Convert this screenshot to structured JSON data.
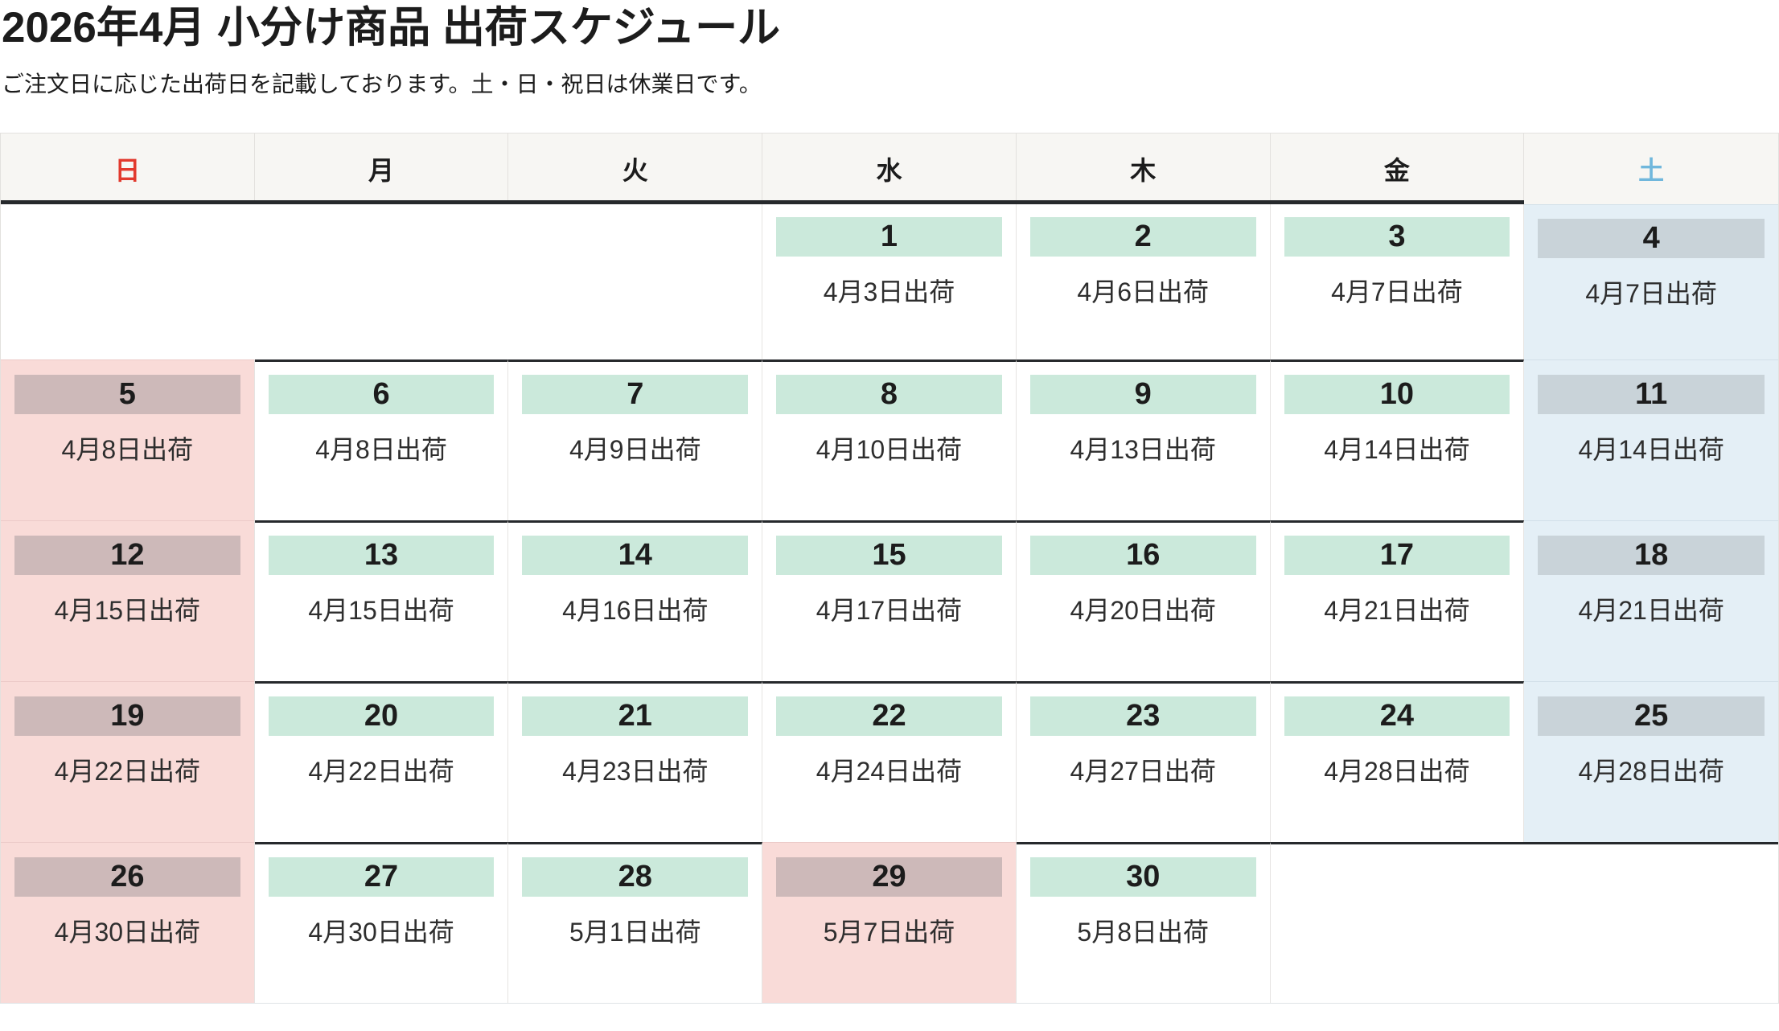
{
  "title": "2026年4月 小分け商品 出荷スケジュール",
  "subtitle": "ご注文日に応じた出荷日を記載しております。土・日・祝日は休業日です。",
  "weekday_header": [
    {
      "label": "日",
      "type": "sunday"
    },
    {
      "label": "月",
      "type": "weekday"
    },
    {
      "label": "火",
      "type": "weekday"
    },
    {
      "label": "水",
      "type": "weekday"
    },
    {
      "label": "木",
      "type": "weekday"
    },
    {
      "label": "金",
      "type": "weekday"
    },
    {
      "label": "土",
      "type": "saturday"
    }
  ],
  "calendar": {
    "rows": [
      {
        "cells": [
          {
            "type": "blank",
            "span": 3
          },
          {
            "type": "weekday",
            "day": "1",
            "ship": "4月3日出荷"
          },
          {
            "type": "weekday",
            "day": "2",
            "ship": "4月6日出荷"
          },
          {
            "type": "weekday",
            "day": "3",
            "ship": "4月7日出荷"
          },
          {
            "type": "saturday",
            "day": "4",
            "ship": "4月7日出荷"
          }
        ]
      },
      {
        "cells": [
          {
            "type": "sunday",
            "day": "5",
            "ship": "4月8日出荷"
          },
          {
            "type": "weekday",
            "day": "6",
            "ship": "4月8日出荷"
          },
          {
            "type": "weekday",
            "day": "7",
            "ship": "4月9日出荷"
          },
          {
            "type": "weekday",
            "day": "8",
            "ship": "4月10日出荷"
          },
          {
            "type": "weekday",
            "day": "9",
            "ship": "4月13日出荷"
          },
          {
            "type": "weekday",
            "day": "10",
            "ship": "4月14日出荷"
          },
          {
            "type": "saturday",
            "day": "11",
            "ship": "4月14日出荷"
          }
        ]
      },
      {
        "cells": [
          {
            "type": "sunday",
            "day": "12",
            "ship": "4月15日出荷"
          },
          {
            "type": "weekday",
            "day": "13",
            "ship": "4月15日出荷"
          },
          {
            "type": "weekday",
            "day": "14",
            "ship": "4月16日出荷"
          },
          {
            "type": "weekday",
            "day": "15",
            "ship": "4月17日出荷"
          },
          {
            "type": "weekday",
            "day": "16",
            "ship": "4月20日出荷"
          },
          {
            "type": "weekday",
            "day": "17",
            "ship": "4月21日出荷"
          },
          {
            "type": "saturday",
            "day": "18",
            "ship": "4月21日出荷"
          }
        ]
      },
      {
        "cells": [
          {
            "type": "sunday",
            "day": "19",
            "ship": "4月22日出荷"
          },
          {
            "type": "weekday",
            "day": "20",
            "ship": "4月22日出荷"
          },
          {
            "type": "weekday",
            "day": "21",
            "ship": "4月23日出荷"
          },
          {
            "type": "weekday",
            "day": "22",
            "ship": "4月24日出荷"
          },
          {
            "type": "weekday",
            "day": "23",
            "ship": "4月27日出荷"
          },
          {
            "type": "weekday",
            "day": "24",
            "ship": "4月28日出荷"
          },
          {
            "type": "saturday",
            "day": "25",
            "ship": "4月28日出荷"
          }
        ]
      },
      {
        "cells": [
          {
            "type": "sunday",
            "day": "26",
            "ship": "4月30日出荷"
          },
          {
            "type": "weekday",
            "day": "27",
            "ship": "4月30日出荷"
          },
          {
            "type": "weekday",
            "day": "28",
            "ship": "5月1日出荷"
          },
          {
            "type": "holiday",
            "day": "29",
            "ship": "5月7日出荷"
          },
          {
            "type": "weekday",
            "day": "30",
            "ship": "5月8日出荷"
          },
          {
            "type": "blank",
            "span": 2
          }
        ]
      }
    ]
  },
  "colors": {
    "weekday_badge": "#cbe9db",
    "sunday_cell": "#f9dbd8",
    "sunday_badge": "#cdb9b9",
    "saturday_cell": "#e4eff6",
    "saturday_badge": "#c9d3d9",
    "sunday_header_text": "#e23a2e",
    "saturday_header_text": "#70b7dc",
    "grid_dark_border": "#26292c",
    "header_bg": "#f7f6f3"
  }
}
